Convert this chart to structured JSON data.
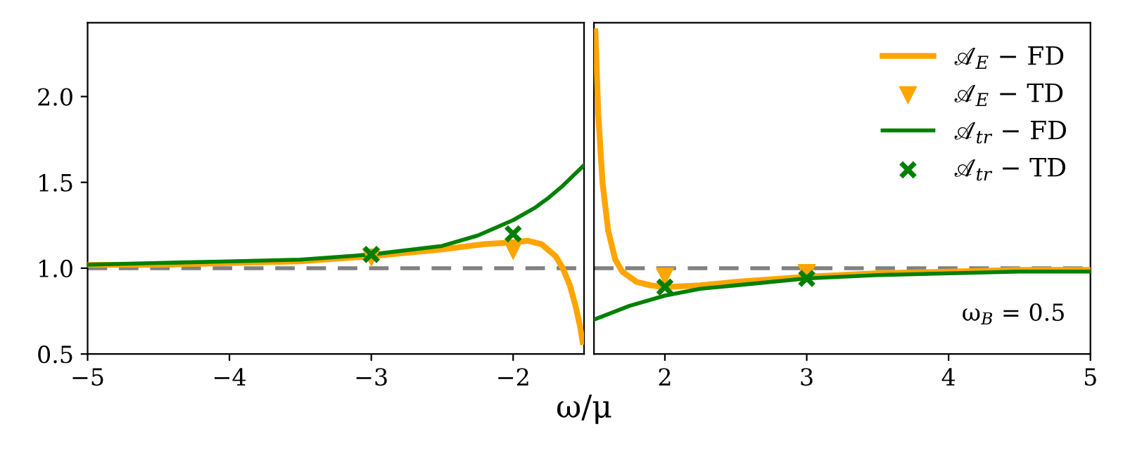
{
  "chart_data": [
    {
      "type": "line",
      "xlabel": "ω/μ",
      "xlim": [
        -5,
        -1.5
      ],
      "xticks": [
        {
          "value": -5,
          "label": "−5"
        },
        {
          "value": -4,
          "label": "−4"
        },
        {
          "value": -3,
          "label": "−3"
        },
        {
          "value": -2,
          "label": "−2"
        }
      ],
      "ylim": [
        0.5,
        2.43
      ],
      "yticks": [
        {
          "value": 0.5,
          "label": "0.5"
        },
        {
          "value": 1,
          "label": "1.0"
        },
        {
          "value": 1.5,
          "label": "1.5"
        },
        {
          "value": 2,
          "label": "2.0"
        }
      ],
      "grid": false,
      "ref_lines": [
        {
          "axis": "y",
          "value": 1.0,
          "color": "#808080",
          "line_style": "dashed"
        }
      ],
      "series": [
        {
          "color": "#ffa500",
          "x": [
            -5,
            -4.5,
            -4,
            -3.5,
            -3,
            -2.5,
            -2.2,
            -2.0,
            -1.9,
            -1.8,
            -1.7,
            -1.65,
            -1.6,
            -1.56,
            -1.53,
            -1.51
          ],
          "values": [
            1.02,
            1.02,
            1.03,
            1.04,
            1.07,
            1.11,
            1.14,
            1.15,
            1.16,
            1.14,
            1.07,
            1.0,
            0.9,
            0.78,
            0.67,
            0.57
          ]
        },
        {
          "type": "scatter",
          "marker": "triangle",
          "color": "#ffa500",
          "x": [
            -3,
            -2
          ],
          "values": [
            1.06,
            1.1
          ]
        },
        {
          "color": "#008000",
          "x": [
            -5,
            -4.5,
            -4,
            -3.5,
            -3,
            -2.5,
            -2.25,
            -2,
            -1.85,
            -1.75,
            -1.65,
            -1.5
          ],
          "values": [
            1.02,
            1.03,
            1.04,
            1.05,
            1.08,
            1.13,
            1.19,
            1.28,
            1.35,
            1.41,
            1.48,
            1.6
          ]
        },
        {
          "type": "scatter",
          "marker": "cross",
          "color": "#008000",
          "x": [
            -3,
            -2
          ],
          "values": [
            1.08,
            1.2
          ]
        }
      ]
    },
    {
      "type": "line",
      "xlim": [
        1.5,
        5
      ],
      "xticks": [
        2,
        3,
        4,
        5
      ],
      "ylim": [
        0.5,
        2.43
      ],
      "tick_labels": "x",
      "grid": false,
      "legend": "top right",
      "annotations": [
        "ω$_{B}$ = 0.5"
      ],
      "ref_lines": [
        {
          "axis": "y",
          "value": 1.0,
          "color": "#808080",
          "line_style": "dashed"
        }
      ],
      "series": [
        {
          "name": "𝒜$_{E}$ − FD",
          "color": "#ffa500",
          "x": [
            1.51,
            1.53,
            1.56,
            1.6,
            1.65,
            1.7,
            1.8,
            1.9,
            2.0,
            2.25,
            2.5,
            3,
            3.5,
            4,
            4.5,
            5
          ],
          "values": [
            2.38,
            1.9,
            1.5,
            1.22,
            1.05,
            0.98,
            0.92,
            0.9,
            0.89,
            0.9,
            0.92,
            0.95,
            0.97,
            0.98,
            0.99,
            0.99
          ]
        },
        {
          "type": "scatter",
          "name": "𝒜$_{E}$ − TD",
          "marker": "triangle",
          "color": "#ffa500",
          "x": [
            2,
            3
          ],
          "values": [
            0.95,
            0.97
          ]
        },
        {
          "name": "𝒜$_{tr}$ − FD",
          "color": "#008000",
          "x": [
            1.5,
            1.75,
            2,
            2.25,
            2.5,
            3,
            3.5,
            4,
            4.5,
            5
          ],
          "values": [
            0.7,
            0.78,
            0.84,
            0.88,
            0.9,
            0.94,
            0.96,
            0.97,
            0.98,
            0.98
          ]
        },
        {
          "type": "scatter",
          "name": "𝒜$_{tr}$ − TD",
          "marker": "cross",
          "color": "#008000",
          "x": [
            2,
            3
          ],
          "values": [
            0.89,
            0.94
          ]
        }
      ]
    }
  ]
}
